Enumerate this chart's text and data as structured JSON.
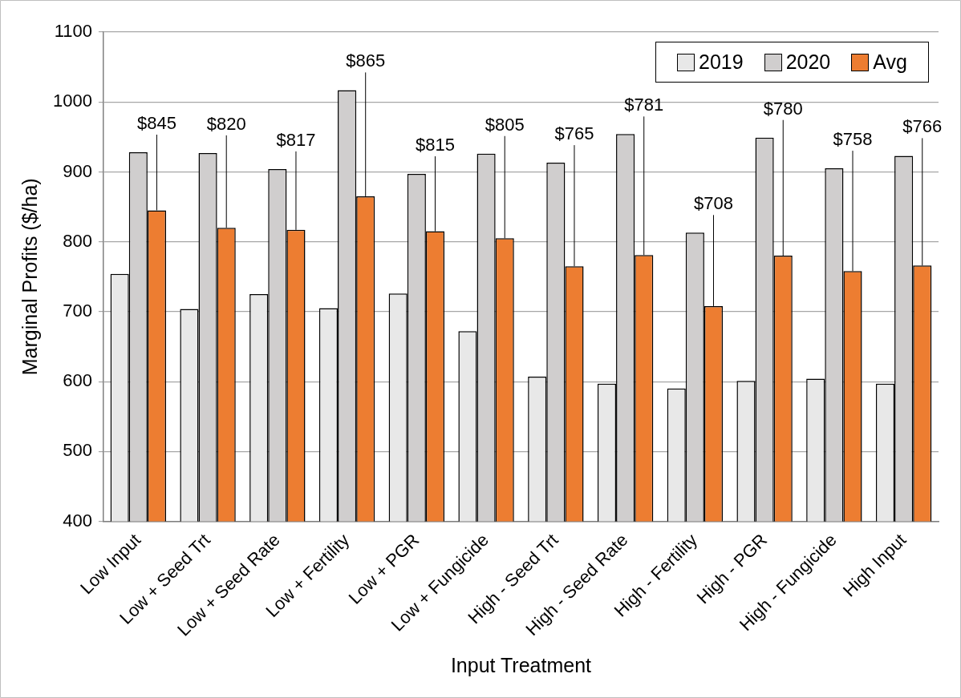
{
  "chart_data": {
    "type": "bar",
    "xlabel": "Input Treatment",
    "ylabel": "Marginal Profits ($/ha)",
    "categories": [
      "Low Input",
      "Low + Seed Trt",
      "Low + Seed Rate",
      "Low + Fertility",
      "Low + PGR",
      "Low + Fungicide",
      "High - Seed Trt",
      "High - Seed Rate",
      "High - Fertility",
      "High - PGR",
      "High - Fungicide",
      "High Input"
    ],
    "series": [
      {
        "name": "2019",
        "color": "#e8e8e8",
        "values": [
          754,
          704,
          725,
          705,
          726,
          672,
          607,
          597,
          590,
          601,
          604,
          597
        ]
      },
      {
        "name": "2020",
        "color": "#d0cece",
        "values": [
          928,
          927,
          904,
          1017,
          897,
          926,
          913,
          954,
          813,
          949,
          905,
          923
        ]
      },
      {
        "name": "Avg",
        "color": "#ed7d31",
        "values": [
          845,
          820,
          817,
          865,
          815,
          805,
          765,
          781,
          708,
          780,
          758,
          766
        ],
        "value_labels": [
          "$845",
          "$820",
          "$817",
          "$865",
          "$815",
          "$805",
          "$765",
          "$781",
          "$708",
          "$780",
          "$758",
          "$766"
        ]
      }
    ],
    "ylim": [
      400,
      1100
    ],
    "yticks": [
      400,
      500,
      600,
      700,
      800,
      900,
      1000,
      1100
    ],
    "grid": "y",
    "legend": "top right"
  }
}
